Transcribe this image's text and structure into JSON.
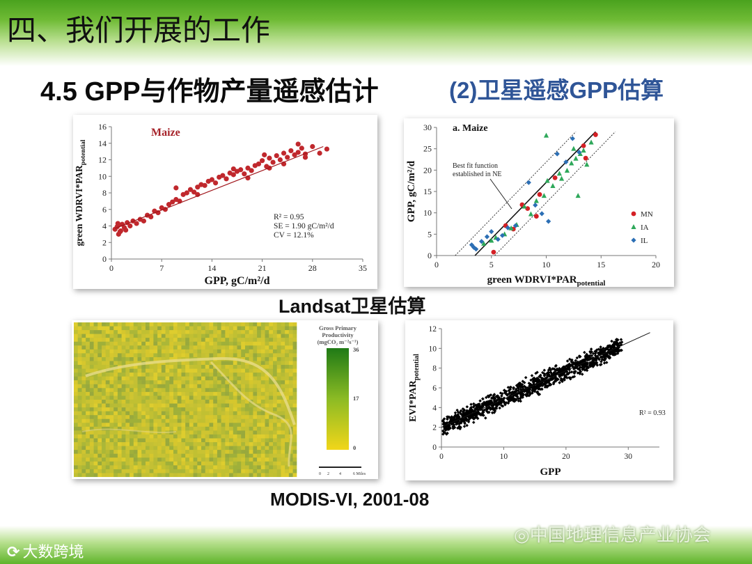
{
  "slide": {
    "title": "四、我们开展的工作",
    "subtitle_main": "4.5 GPP与作物产量遥感估计",
    "subtitle_side": "(2)卫星遥感GPP估算",
    "caption_landsat": "Landsat卫星估算",
    "caption_modis": "MODIS-VI, 2001-08",
    "footer_left": "大数跨境",
    "footer_right": "中国地理信息产业协会"
  },
  "colors": {
    "accent_green": "#5fb42a",
    "subtitle_blue": "#2f5597",
    "maize_red": "#c0282d"
  },
  "chart_data": [
    {
      "type": "scatter",
      "title": "Maize",
      "xlabel": "GPP, gC/m²/d",
      "ylabel_main": "green WDRVI*PAR",
      "ylabel_sub": "potential",
      "xlim": [
        0,
        35
      ],
      "ylim": [
        0,
        16
      ],
      "xticks": [
        0,
        7,
        14,
        21,
        28,
        35
      ],
      "yticks": [
        0,
        2,
        4,
        6,
        8,
        10,
        12,
        14,
        16
      ],
      "fit": {
        "x": [
          0.5,
          29.5
        ],
        "y": [
          3.7,
          13.6
        ]
      },
      "stats": [
        "R² = 0.95",
        "SE = 1.90 gC/m²/d",
        "CV = 12.1%"
      ],
      "series": [
        {
          "name": "Maize",
          "x": [
            0.5,
            0.8,
            1,
            1.2,
            1.5,
            1.8,
            2.2,
            2.6,
            3,
            3.5,
            4,
            4.5,
            5,
            5.5,
            6,
            6.5,
            7,
            7.5,
            8,
            8.5,
            9,
            9.5,
            10,
            10.5,
            11,
            11.5,
            12,
            12.5,
            13,
            13.5,
            14,
            14.5,
            15,
            15.5,
            16,
            16.5,
            17,
            17.5,
            18,
            18.5,
            19,
            19.5,
            20,
            20.5,
            21,
            21.3,
            21.6,
            22,
            22.5,
            23,
            23.5,
            24,
            24.5,
            25,
            25.5,
            26,
            26.5,
            27,
            28,
            29,
            30,
            1,
            1.3,
            0.9,
            2,
            9,
            12,
            17,
            19,
            22,
            24,
            26,
            27
          ],
          "y": [
            3.6,
            3.9,
            4.1,
            3.3,
            4.2,
            3.8,
            4.4,
            4.0,
            4.6,
            4.3,
            4.8,
            4.6,
            5.3,
            5.1,
            5.8,
            5.6,
            6.2,
            6.0,
            6.6,
            6.9,
            7.2,
            7.0,
            7.8,
            8.0,
            8.4,
            8.1,
            8.7,
            9.0,
            8.9,
            9.4,
            9.6,
            9.2,
            9.9,
            10.1,
            9.7,
            10.4,
            10.2,
            10.6,
            10.8,
            10.3,
            11.0,
            10.7,
            11.3,
            11.5,
            11.9,
            12.6,
            11.2,
            12.2,
            11.7,
            12.5,
            12.0,
            12.8,
            12.3,
            13.1,
            12.6,
            12.9,
            13.4,
            12.7,
            13.6,
            12.8,
            13.3,
            3.0,
            3.4,
            4.3,
            3.5,
            8.6,
            7.8,
            10.9,
            9.8,
            11.0,
            11.5,
            13.9,
            12.3
          ]
        }
      ]
    },
    {
      "type": "scatter",
      "title": "a. Maize",
      "xlabel_main": "green WDRVI*PAR",
      "xlabel_sub": "potential",
      "ylabel": "GPP, gC/m²/d",
      "xlim": [
        0,
        20
      ],
      "ylim": [
        0,
        30
      ],
      "xticks": [
        0,
        5,
        10,
        15,
        20
      ],
      "yticks": [
        0,
        5,
        10,
        15,
        20,
        25,
        30
      ],
      "annotation": [
        "Best fit function",
        "established in NE"
      ],
      "fit": {
        "x": [
          3.5,
          14.5
        ],
        "y": [
          0,
          29
        ]
      },
      "fit_bands": [
        {
          "x": [
            1.7,
            12.7
          ],
          "y": [
            0,
            29
          ]
        },
        {
          "x": [
            5.3,
            16.3
          ],
          "y": [
            0,
            29
          ]
        }
      ],
      "legend": [
        "MN",
        "IA",
        "IL"
      ],
      "series": [
        {
          "name": "MN",
          "x": [
            5.2,
            6.3,
            7.0,
            7.8,
            8.3,
            9.1,
            9.4,
            10.8,
            13.4,
            13.6,
            14.5
          ],
          "y": [
            0.8,
            7.0,
            6.2,
            11.9,
            11.0,
            9.2,
            14.3,
            18.2,
            25.7,
            22.8,
            28.3
          ]
        },
        {
          "name": "IA",
          "x": [
            4.3,
            5.0,
            5.4,
            6.2,
            6.8,
            7.3,
            8.0,
            8.6,
            9.1,
            9.8,
            10.0,
            10.6,
            11.4,
            11.9,
            12.3,
            12.7,
            13.1,
            13.4,
            13.7,
            14.1,
            12.9,
            11.2,
            10.1,
            12.5
          ],
          "y": [
            2.8,
            3.5,
            4.2,
            5.0,
            6.4,
            7.2,
            11.5,
            9.7,
            12.8,
            14.0,
            28.1,
            16.3,
            18.0,
            19.9,
            21.6,
            22.7,
            23.8,
            24.6,
            21.3,
            26.5,
            14.0,
            19.2,
            17.5,
            25.0
          ]
        },
        {
          "name": "IL",
          "x": [
            3.2,
            3.6,
            4.1,
            4.6,
            5.0,
            5.6,
            6.0,
            6.5,
            7.2,
            8.4,
            9.0,
            9.6,
            10.2,
            11.0,
            11.8,
            12.4,
            13.0,
            3.4
          ],
          "y": [
            2.5,
            1.5,
            3.3,
            4.4,
            5.6,
            3.8,
            4.7,
            6.5,
            7.0,
            17.1,
            11.8,
            9.8,
            8.0,
            23.8,
            21.9,
            27.4,
            24.2,
            1.9
          ]
        }
      ]
    },
    {
      "type": "heatmap",
      "title_lines": [
        "Gross Primary",
        "Productivity",
        "(mgCO₂ m⁻²s⁻¹)"
      ],
      "colorbar_ticks": [
        "36",
        "17",
        "0"
      ],
      "scalebar_labels": [
        "0",
        "2",
        "4",
        "6 Miles"
      ]
    },
    {
      "type": "scatter",
      "xlabel": "GPP",
      "ylabel_main": "EVI*PAR",
      "ylabel_sub": "potential",
      "xlim": [
        0,
        35
      ],
      "ylim": [
        0,
        12
      ],
      "xticks": [
        0,
        10,
        20,
        30
      ],
      "yticks": [
        0,
        2,
        4,
        6,
        8,
        10,
        12
      ],
      "fit": {
        "x": [
          0,
          33.5
        ],
        "y": [
          2.0,
          11.6
        ]
      },
      "stat": "R² = 0.93",
      "cloud": {
        "slope": 0.286,
        "intercept": 2.0,
        "x_range": [
          0.2,
          29
        ],
        "spread": 0.9,
        "count": 1150
      }
    }
  ]
}
